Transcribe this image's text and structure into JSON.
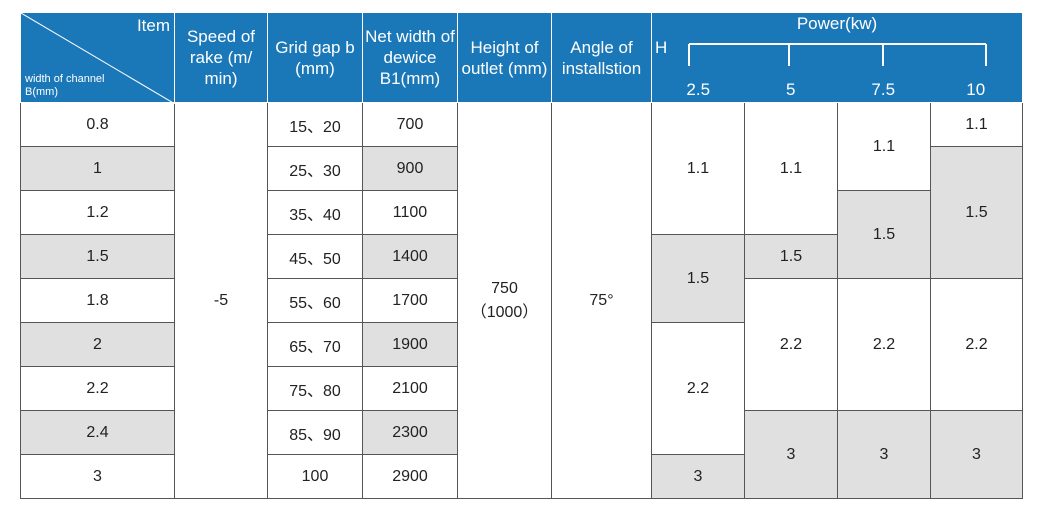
{
  "header": {
    "item": "Item",
    "channel": "width of channel B(mm)",
    "speed": "Speed of rake (m/ min)",
    "grid_gap": "Grid gap b (mm)",
    "net_width": "Net width of dewice B1(mm)",
    "height": "Height of outlet (mm)",
    "angle": "Angle of installstion",
    "power_title": "Power(kw)",
    "h_label": "H",
    "power_levels": [
      "2.5",
      "5",
      "7.5",
      "10"
    ]
  },
  "table": {
    "widths": [
      "0.8",
      "1",
      "1.2",
      "1.5",
      "1.8",
      "2",
      "2.2",
      "2.4",
      "3"
    ],
    "grid_gaps": [
      "15、20",
      "25、30",
      "35、40",
      "45、50",
      "55、60",
      "65、70",
      "75、80",
      "85、90",
      "100"
    ],
    "net_widths": [
      "700",
      "900",
      "1100",
      "1400",
      "1700",
      "1900",
      "2100",
      "2300",
      "2900"
    ],
    "speed": "-5",
    "height": [
      "750",
      "（1000）"
    ],
    "angle": "75°",
    "power_columns": [
      [
        "1.1",
        "1.5",
        "2.2",
        "3"
      ],
      [
        "1.1",
        "1.5",
        "2.2",
        "3"
      ],
      [
        "1.1",
        "1.5",
        "2.2",
        "3"
      ],
      [
        "1.1",
        "1.5",
        "2.2",
        "3"
      ]
    ]
  }
}
